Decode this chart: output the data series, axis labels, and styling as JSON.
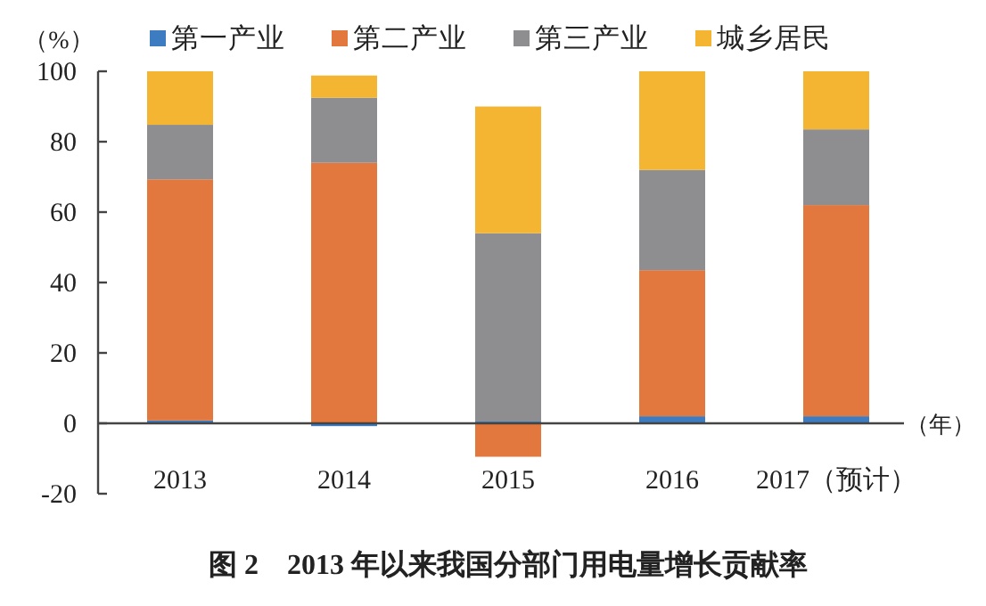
{
  "chart_data": {
    "type": "bar",
    "title": "图 2　2013 年以来我国分部门用电量增长贡献率",
    "ylabel": "（%）",
    "xlabel": "（年）",
    "categories": [
      "2013",
      "2014",
      "2015",
      "2016",
      "2017（预计）"
    ],
    "stacked": true,
    "series": [
      {
        "name": "第一产业",
        "color": "#3d7cc0",
        "values": [
          0.8,
          -0.8,
          0.5,
          2,
          2
        ]
      },
      {
        "name": "第二产业",
        "color": "#e3783e",
        "values": [
          68.5,
          74,
          -9.5,
          41.5,
          60
        ]
      },
      {
        "name": "第三产业",
        "color": "#8e8e91",
        "values": [
          15.5,
          18.5,
          53.5,
          28.5,
          21.5
        ]
      },
      {
        "name": "城乡居民",
        "color": "#f3b532",
        "values": [
          15.2,
          6.3,
          36,
          28,
          16.5
        ]
      }
    ],
    "ylim": [
      -20,
      100
    ],
    "yticks": [
      -20,
      0,
      20,
      40,
      60,
      80,
      100
    ],
    "legend": "top"
  }
}
